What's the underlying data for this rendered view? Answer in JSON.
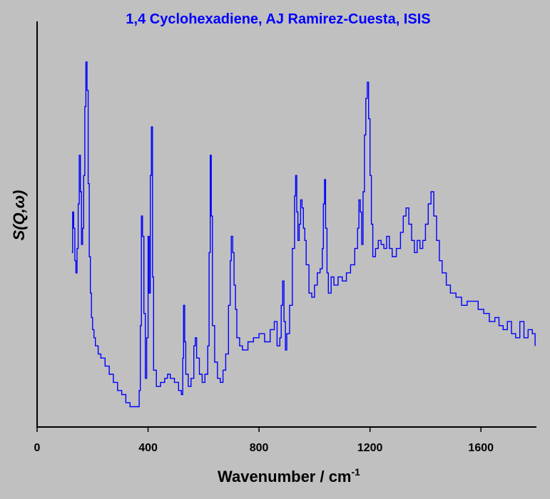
{
  "chart_data": {
    "type": "line",
    "title": "1,4 Cyclohexadiene, AJ Ramirez-Cuesta, ISIS",
    "xlabel": "Wavenumber / cm",
    "xlabel_sup": "-1",
    "ylabel": "S(Q,ω)",
    "xlim": [
      0,
      1800
    ],
    "ylim": [
      0,
      1.0
    ],
    "x_ticks": [
      0,
      400,
      800,
      1200,
      1600
    ],
    "x_tick_labels": [
      "0",
      "400",
      "800",
      "1200",
      "1600"
    ],
    "y_ticks": [],
    "grid": false,
    "legend": "none",
    "line_style": "step",
    "series": [
      {
        "color": "#0000ff",
        "x": [
          125,
          128,
          132,
          136,
          140,
          144,
          148,
          152,
          156,
          160,
          164,
          168,
          172,
          176,
          180,
          184,
          188,
          192,
          196,
          200,
          205,
          210,
          220,
          230,
          245,
          260,
          275,
          290,
          305,
          320,
          335,
          350,
          360,
          368,
          372,
          376,
          380,
          385,
          390,
          395,
          400,
          404,
          408,
          412,
          416,
          420,
          430,
          445,
          460,
          470,
          480,
          495,
          510,
          520,
          525,
          528,
          532,
          536,
          545,
          555,
          565,
          570,
          575,
          585,
          595,
          605,
          615,
          620,
          624,
          628,
          632,
          640,
          650,
          660,
          670,
          680,
          690,
          696,
          700,
          705,
          710,
          715,
          720,
          730,
          740,
          760,
          780,
          800,
          820,
          840,
          855,
          865,
          875,
          880,
          885,
          890,
          895,
          900,
          910,
          920,
          928,
          932,
          936,
          940,
          945,
          950,
          955,
          960,
          965,
          970,
          980,
          990,
          1000,
          1010,
          1020,
          1028,
          1032,
          1036,
          1040,
          1045,
          1050,
          1060,
          1070,
          1085,
          1100,
          1115,
          1130,
          1145,
          1155,
          1160,
          1165,
          1170,
          1175,
          1180,
          1185,
          1190,
          1195,
          1200,
          1205,
          1210,
          1220,
          1230,
          1240,
          1250,
          1260,
          1270,
          1280,
          1295,
          1310,
          1320,
          1330,
          1340,
          1350,
          1360,
          1370,
          1380,
          1390,
          1400,
          1410,
          1420,
          1430,
          1440,
          1450,
          1460,
          1475,
          1490,
          1510,
          1530,
          1550,
          1570,
          1590,
          1610,
          1630,
          1650,
          1665,
          1680,
          1695,
          1710,
          1725,
          1740,
          1755,
          1770,
          1785,
          1795
        ],
        "y": [
          0.43,
          0.53,
          0.49,
          0.41,
          0.38,
          0.44,
          0.55,
          0.67,
          0.58,
          0.45,
          0.49,
          0.62,
          0.79,
          0.9,
          0.83,
          0.6,
          0.42,
          0.33,
          0.27,
          0.24,
          0.22,
          0.2,
          0.18,
          0.17,
          0.15,
          0.13,
          0.11,
          0.09,
          0.08,
          0.06,
          0.05,
          0.05,
          0.05,
          0.09,
          0.25,
          0.52,
          0.47,
          0.28,
          0.12,
          0.22,
          0.47,
          0.33,
          0.62,
          0.74,
          0.37,
          0.14,
          0.1,
          0.11,
          0.12,
          0.13,
          0.12,
          0.11,
          0.09,
          0.08,
          0.17,
          0.3,
          0.21,
          0.13,
          0.1,
          0.12,
          0.2,
          0.22,
          0.17,
          0.13,
          0.11,
          0.13,
          0.2,
          0.43,
          0.67,
          0.52,
          0.25,
          0.16,
          0.12,
          0.11,
          0.14,
          0.18,
          0.3,
          0.41,
          0.47,
          0.43,
          0.35,
          0.29,
          0.22,
          0.2,
          0.19,
          0.21,
          0.22,
          0.23,
          0.21,
          0.24,
          0.26,
          0.2,
          0.22,
          0.3,
          0.36,
          0.26,
          0.19,
          0.23,
          0.3,
          0.44,
          0.57,
          0.62,
          0.53,
          0.46,
          0.5,
          0.56,
          0.54,
          0.49,
          0.46,
          0.4,
          0.33,
          0.32,
          0.35,
          0.38,
          0.39,
          0.44,
          0.55,
          0.61,
          0.49,
          0.38,
          0.33,
          0.37,
          0.35,
          0.37,
          0.36,
          0.38,
          0.4,
          0.44,
          0.49,
          0.56,
          0.53,
          0.45,
          0.58,
          0.72,
          0.81,
          0.85,
          0.76,
          0.62,
          0.5,
          0.42,
          0.44,
          0.46,
          0.45,
          0.44,
          0.47,
          0.44,
          0.42,
          0.44,
          0.48,
          0.52,
          0.54,
          0.5,
          0.46,
          0.43,
          0.46,
          0.44,
          0.46,
          0.5,
          0.55,
          0.58,
          0.52,
          0.46,
          0.41,
          0.38,
          0.35,
          0.33,
          0.32,
          0.3,
          0.31,
          0.31,
          0.29,
          0.28,
          0.26,
          0.27,
          0.25,
          0.24,
          0.26,
          0.23,
          0.22,
          0.26,
          0.22,
          0.24,
          0.23,
          0.2
        ]
      }
    ]
  }
}
